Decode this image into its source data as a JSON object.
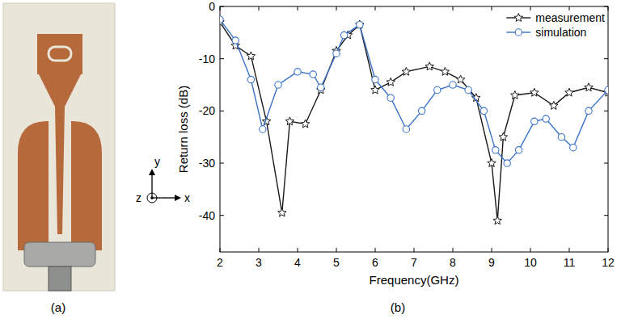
{
  "chart_data": {
    "type": "line",
    "label": "(b)",
    "x_label": "Frequency(GHz)",
    "y_label": "Return loss (dB)",
    "xlim": [
      2,
      12
    ],
    "xticks": [
      2,
      3,
      4,
      5,
      6,
      7,
      8,
      9,
      10,
      11,
      12
    ],
    "ylim": [
      -47,
      0
    ],
    "yticks": [
      -40,
      -30,
      -20,
      -10,
      0
    ],
    "legend": "upper right",
    "grid": false,
    "series": [
      {
        "name": "measurement",
        "color": "#1a1a1a",
        "marker": "star",
        "line_style": "solid",
        "x": [
          2,
          2.4,
          2.8,
          3.2,
          3.6,
          3.8,
          4.2,
          4.6,
          5.0,
          5.3,
          5.6,
          6.0,
          6.4,
          6.8,
          7.4,
          7.8,
          8.2,
          8.6,
          9.0,
          9.15,
          9.3,
          9.6,
          10.1,
          10.6,
          11.0,
          11.5,
          12
        ],
        "values": [
          -3,
          -7.5,
          -9.5,
          -22,
          -39.5,
          -22,
          -22.5,
          -16,
          -8.5,
          -5.5,
          -3.5,
          -16,
          -14.5,
          -12.5,
          -11.5,
          -12.5,
          -14,
          -17.5,
          -30,
          -41,
          -25,
          -17,
          -16.5,
          -19,
          -16.5,
          -15.5,
          -16.5
        ]
      },
      {
        "name": "simulation",
        "color": "#3b73c8",
        "marker": "circle",
        "line_style": "solid",
        "x": [
          2,
          2.4,
          2.8,
          3.1,
          3.5,
          4.0,
          4.4,
          4.6,
          5.0,
          5.2,
          5.6,
          6.0,
          6.4,
          6.8,
          7.2,
          7.6,
          8.0,
          8.4,
          8.8,
          9.1,
          9.4,
          9.7,
          10.1,
          10.4,
          10.8,
          11.1,
          11.5,
          12
        ],
        "values": [
          -2.5,
          -6.5,
          -14,
          -23.5,
          -15,
          -12.5,
          -13,
          -15.5,
          -9,
          -5.5,
          -3.5,
          -14,
          -17.5,
          -23.5,
          -20,
          -16,
          -15,
          -16,
          -20,
          -27.5,
          -30,
          -27.5,
          -22,
          -21.5,
          -25,
          -27,
          -20,
          -16
        ]
      }
    ]
  },
  "photo": {
    "label": "(a)",
    "axes": {
      "x": "x",
      "y": "y",
      "z": "z"
    }
  }
}
